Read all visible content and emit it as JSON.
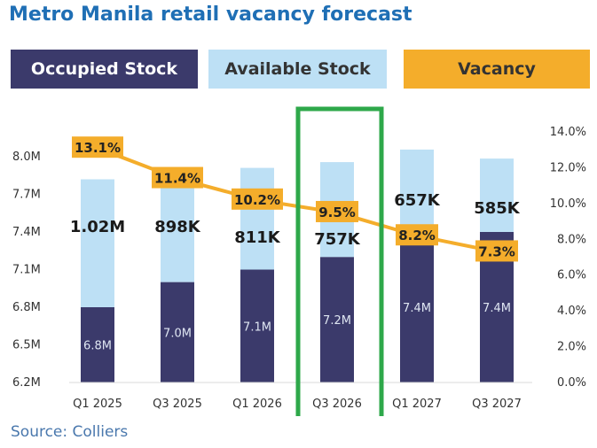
{
  "title": "Metro Manila retail vacancy forecast",
  "source": "Source: Colliers",
  "legend": {
    "occupied": "Occupied Stock",
    "available": "Available Stock",
    "vacancy": "Vacancy"
  },
  "colors": {
    "occupied": "#3b3a6b",
    "available": "#bde0f5",
    "vacancy": "#f4ad2b",
    "highlight": "#2ea84a",
    "title": "#1f6fb5"
  },
  "chart_data": {
    "type": "bar",
    "stacked": true,
    "categories": [
      "Q1 2025",
      "Q3 2025",
      "Q1 2026",
      "Q3 2026",
      "Q1 2027",
      "Q3 2027"
    ],
    "series": [
      {
        "name": "Occupied Stock",
        "values": [
          6.8,
          7.0,
          7.1,
          7.2,
          7.4,
          7.4
        ],
        "labels": [
          "6.8M",
          "7.0M",
          "7.1M",
          "7.2M",
          "7.4M",
          "7.4M"
        ]
      },
      {
        "name": "Available Stock",
        "values": [
          1.02,
          0.898,
          0.811,
          0.757,
          0.657,
          0.585
        ],
        "labels": [
          "1.02M",
          "898K",
          "811K",
          "757K",
          "657K",
          "585K"
        ]
      }
    ],
    "line": {
      "name": "Vacancy",
      "values": [
        13.1,
        11.4,
        10.2,
        9.5,
        8.2,
        7.3
      ],
      "labels": [
        "13.1%",
        "11.4%",
        "10.2%",
        "9.5%",
        "8.2%",
        "7.3%"
      ]
    },
    "left_ticks": [
      "8.0M",
      "7.7M",
      "7.4M",
      "7.1M",
      "6.8M",
      "6.5M",
      "6.2M"
    ],
    "right_ticks": [
      "14.0%",
      "12.0%",
      "10.0%",
      "8.0%",
      "6.0%",
      "4.0%",
      "2.0%",
      "0.0%"
    ],
    "ylim_left": [
      6.2,
      8.2
    ],
    "ylim_right": [
      0,
      14
    ],
    "highlight_category": "Q3 2026",
    "grid": false
  }
}
